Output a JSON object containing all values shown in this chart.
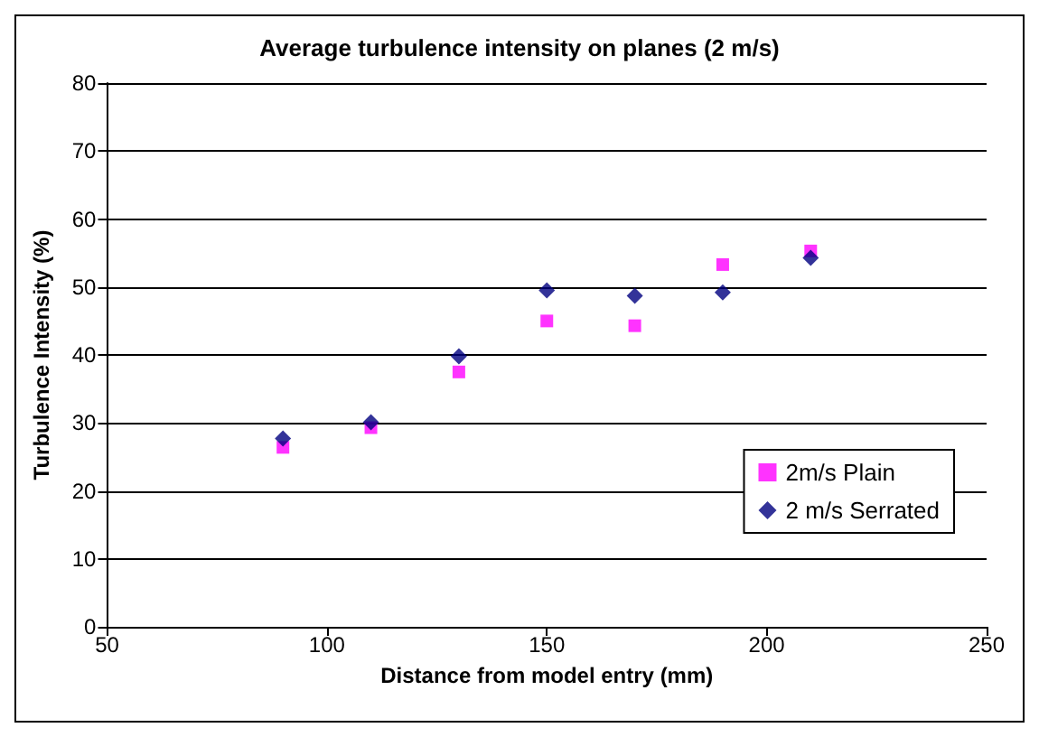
{
  "chart_data": {
    "type": "scatter",
    "title": "Average turbulence intensity on planes (2 m/s)",
    "xlabel": "Distance from model entry (mm)",
    "ylabel": "Turbulence Intensity (%)",
    "x": [
      90,
      110,
      130,
      150,
      170,
      190,
      210
    ],
    "series": [
      {
        "name": "2m/s Plain",
        "color": "#ff00ff",
        "marker": "square",
        "values": [
          26.4,
          29.3,
          37.5,
          45,
          44.3,
          53.3,
          55.3
        ]
      },
      {
        "name": "2 m/s Serrated",
        "color": "#000080",
        "marker": "diamond",
        "values": [
          27.7,
          30.1,
          39.8,
          49.5,
          48.7,
          49.2,
          54.3
        ]
      }
    ],
    "xlim": [
      50,
      250
    ],
    "xticks": [
      50,
      100,
      150,
      200,
      250
    ],
    "ylim": [
      0,
      80
    ],
    "yticks": [
      0,
      10,
      20,
      30,
      40,
      50,
      60,
      70,
      80
    ],
    "grid": "y",
    "legend": "center right"
  }
}
